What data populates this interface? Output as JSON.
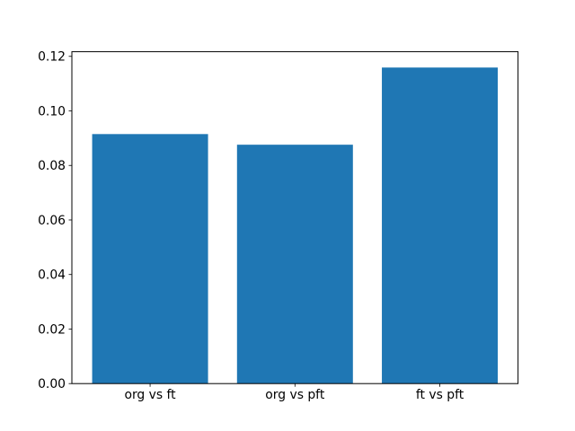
{
  "chart_data": {
    "type": "bar",
    "title": "",
    "xlabel": "",
    "ylabel": "",
    "categories": [
      "org vs ft",
      "org vs pft",
      "ft vs pft"
    ],
    "values": [
      0.0915,
      0.0876,
      0.1159
    ],
    "ytick_values": [
      0.0,
      0.02,
      0.04,
      0.06,
      0.08,
      0.1,
      0.12
    ],
    "ytick_labels": [
      "0.00",
      "0.02",
      "0.04",
      "0.06",
      "0.08",
      "0.10",
      "0.12"
    ],
    "ylim": [
      0,
      0.1217
    ],
    "xlim": [
      -0.54,
      2.54
    ],
    "bar_width_fraction": 0.8,
    "bar_color": "#1f77b4",
    "axis_color": "#000000",
    "background_color": "#ffffff",
    "grid": false,
    "legend": false
  }
}
